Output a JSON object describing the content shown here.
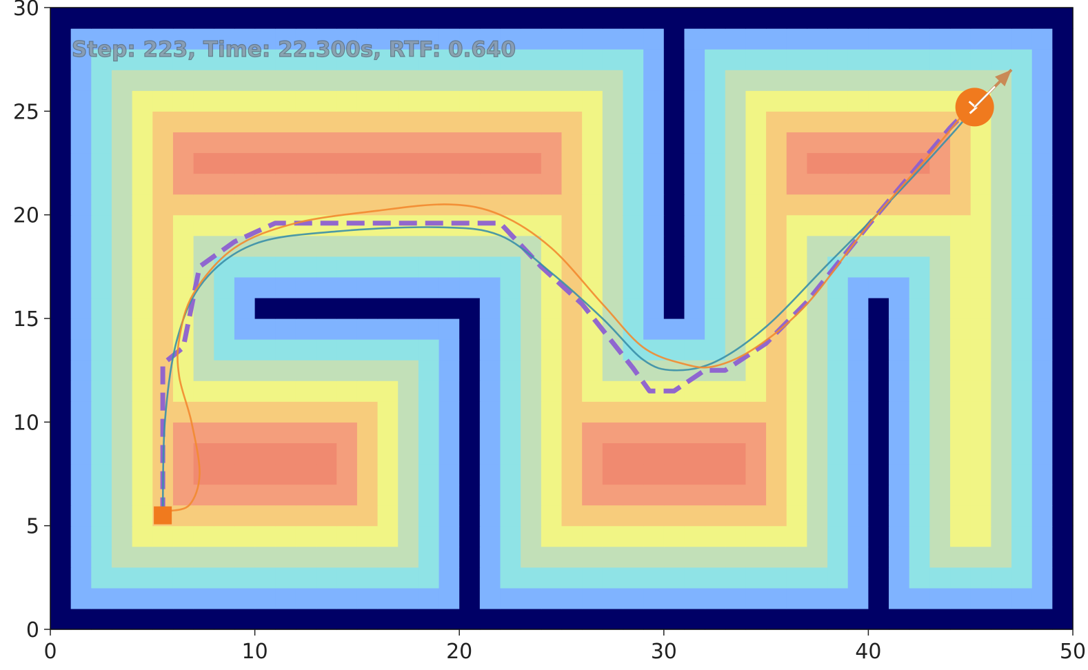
{
  "chart_data": {
    "type": "heatmap",
    "title": "",
    "xlabel": "",
    "ylabel": "",
    "xlim": [
      0,
      50
    ],
    "ylim": [
      0,
      30
    ],
    "x_ticks": [
      0,
      10,
      20,
      30,
      40,
      50
    ],
    "y_ticks": [
      0,
      5,
      10,
      15,
      20,
      25,
      30
    ],
    "grid": false,
    "legend": "none",
    "status_text": "Step: 223, Time: 22.300s, RTF: 0.640",
    "heatmap": {
      "cell_size": 1,
      "colormap": [
        "#000066",
        "#7fb3ff",
        "#8fe3e6",
        "#c2e0b8",
        "#f1f585",
        "#f7cc7c",
        "#f49e7c",
        "#f08a70",
        "#cb7575",
        "#c06c6c"
      ],
      "max_level": 9,
      "walls": [
        {
          "x": [
            0,
            50
          ],
          "y": [
            0,
            1
          ]
        },
        {
          "x": [
            0,
            50
          ],
          "y": [
            29,
            30
          ]
        },
        {
          "x": [
            0,
            1
          ],
          "y": [
            0,
            30
          ]
        },
        {
          "x": [
            49,
            50
          ],
          "y": [
            0,
            30
          ]
        },
        {
          "x": [
            30,
            31
          ],
          "y": [
            15,
            30
          ]
        },
        {
          "x": [
            20,
            21
          ],
          "y": [
            0,
            16
          ]
        },
        {
          "x": [
            10,
            20
          ],
          "y": [
            15,
            16
          ]
        },
        {
          "x": [
            40,
            41
          ],
          "y": [
            0,
            16
          ]
        }
      ]
    },
    "series": [
      {
        "style": "dashed",
        "color": "#8c5fd1",
        "points": [
          [
            5.5,
            5.5
          ],
          [
            5.5,
            12.8
          ],
          [
            6.5,
            13.6
          ],
          [
            7.3,
            17.5
          ],
          [
            9.0,
            18.7
          ],
          [
            11.0,
            19.6
          ],
          [
            20.0,
            19.6
          ],
          [
            22.0,
            19.6
          ],
          [
            24.0,
            17.5
          ],
          [
            26.0,
            15.7
          ],
          [
            28.5,
            12.6
          ],
          [
            29.3,
            11.5
          ],
          [
            30.5,
            11.5
          ],
          [
            32.0,
            12.5
          ],
          [
            33.0,
            12.5
          ],
          [
            35.0,
            13.8
          ],
          [
            37.0,
            15.8
          ],
          [
            40.0,
            19.5
          ],
          [
            44.0,
            24.2
          ],
          [
            45.0,
            25.2
          ]
        ]
      },
      {
        "style": "solid",
        "color": "#3a8fa8",
        "points": [
          [
            5.5,
            5.3
          ],
          [
            5.6,
            10.0
          ],
          [
            6.2,
            14.0
          ],
          [
            7.5,
            16.8
          ],
          [
            10.0,
            18.6
          ],
          [
            14.0,
            19.2
          ],
          [
            19.0,
            19.4
          ],
          [
            22.0,
            19.0
          ],
          [
            24.5,
            17.2
          ],
          [
            27.0,
            15.0
          ],
          [
            29.0,
            13.0
          ],
          [
            30.5,
            12.5
          ],
          [
            32.5,
            12.9
          ],
          [
            35.0,
            14.6
          ],
          [
            38.0,
            17.6
          ],
          [
            41.0,
            20.6
          ],
          [
            44.0,
            23.8
          ],
          [
            45.2,
            25.2
          ]
        ]
      },
      {
        "style": "solid",
        "color": "#f28a30",
        "points": [
          [
            5.7,
            5.7
          ],
          [
            6.8,
            6.0
          ],
          [
            7.3,
            7.5
          ],
          [
            6.9,
            10.0
          ],
          [
            6.3,
            12.2
          ],
          [
            6.3,
            14.0
          ],
          [
            7.0,
            16.2
          ],
          [
            9.0,
            18.4
          ],
          [
            12.0,
            19.6
          ],
          [
            16.0,
            20.2
          ],
          [
            19.5,
            20.5
          ],
          [
            22.0,
            20.0
          ],
          [
            24.5,
            18.4
          ],
          [
            27.0,
            15.7
          ],
          [
            29.0,
            13.6
          ],
          [
            31.0,
            12.8
          ],
          [
            32.5,
            12.7
          ],
          [
            34.5,
            13.6
          ],
          [
            37.0,
            15.7
          ],
          [
            40.0,
            19.5
          ],
          [
            43.0,
            22.9
          ],
          [
            45.0,
            25.3
          ]
        ]
      }
    ],
    "markers": [
      {
        "kind": "start",
        "shape": "square",
        "color": "#f07a1e",
        "x": 5.5,
        "y": 5.5
      },
      {
        "kind": "goal",
        "shape": "circle",
        "color": "#f07a1e",
        "x": 45.2,
        "y": 25.2
      },
      {
        "kind": "heading",
        "shape": "arrow",
        "color": "#c98a55",
        "x": 45.2,
        "y": 25.2,
        "dx": 1.8,
        "dy": 1.8
      }
    ]
  }
}
